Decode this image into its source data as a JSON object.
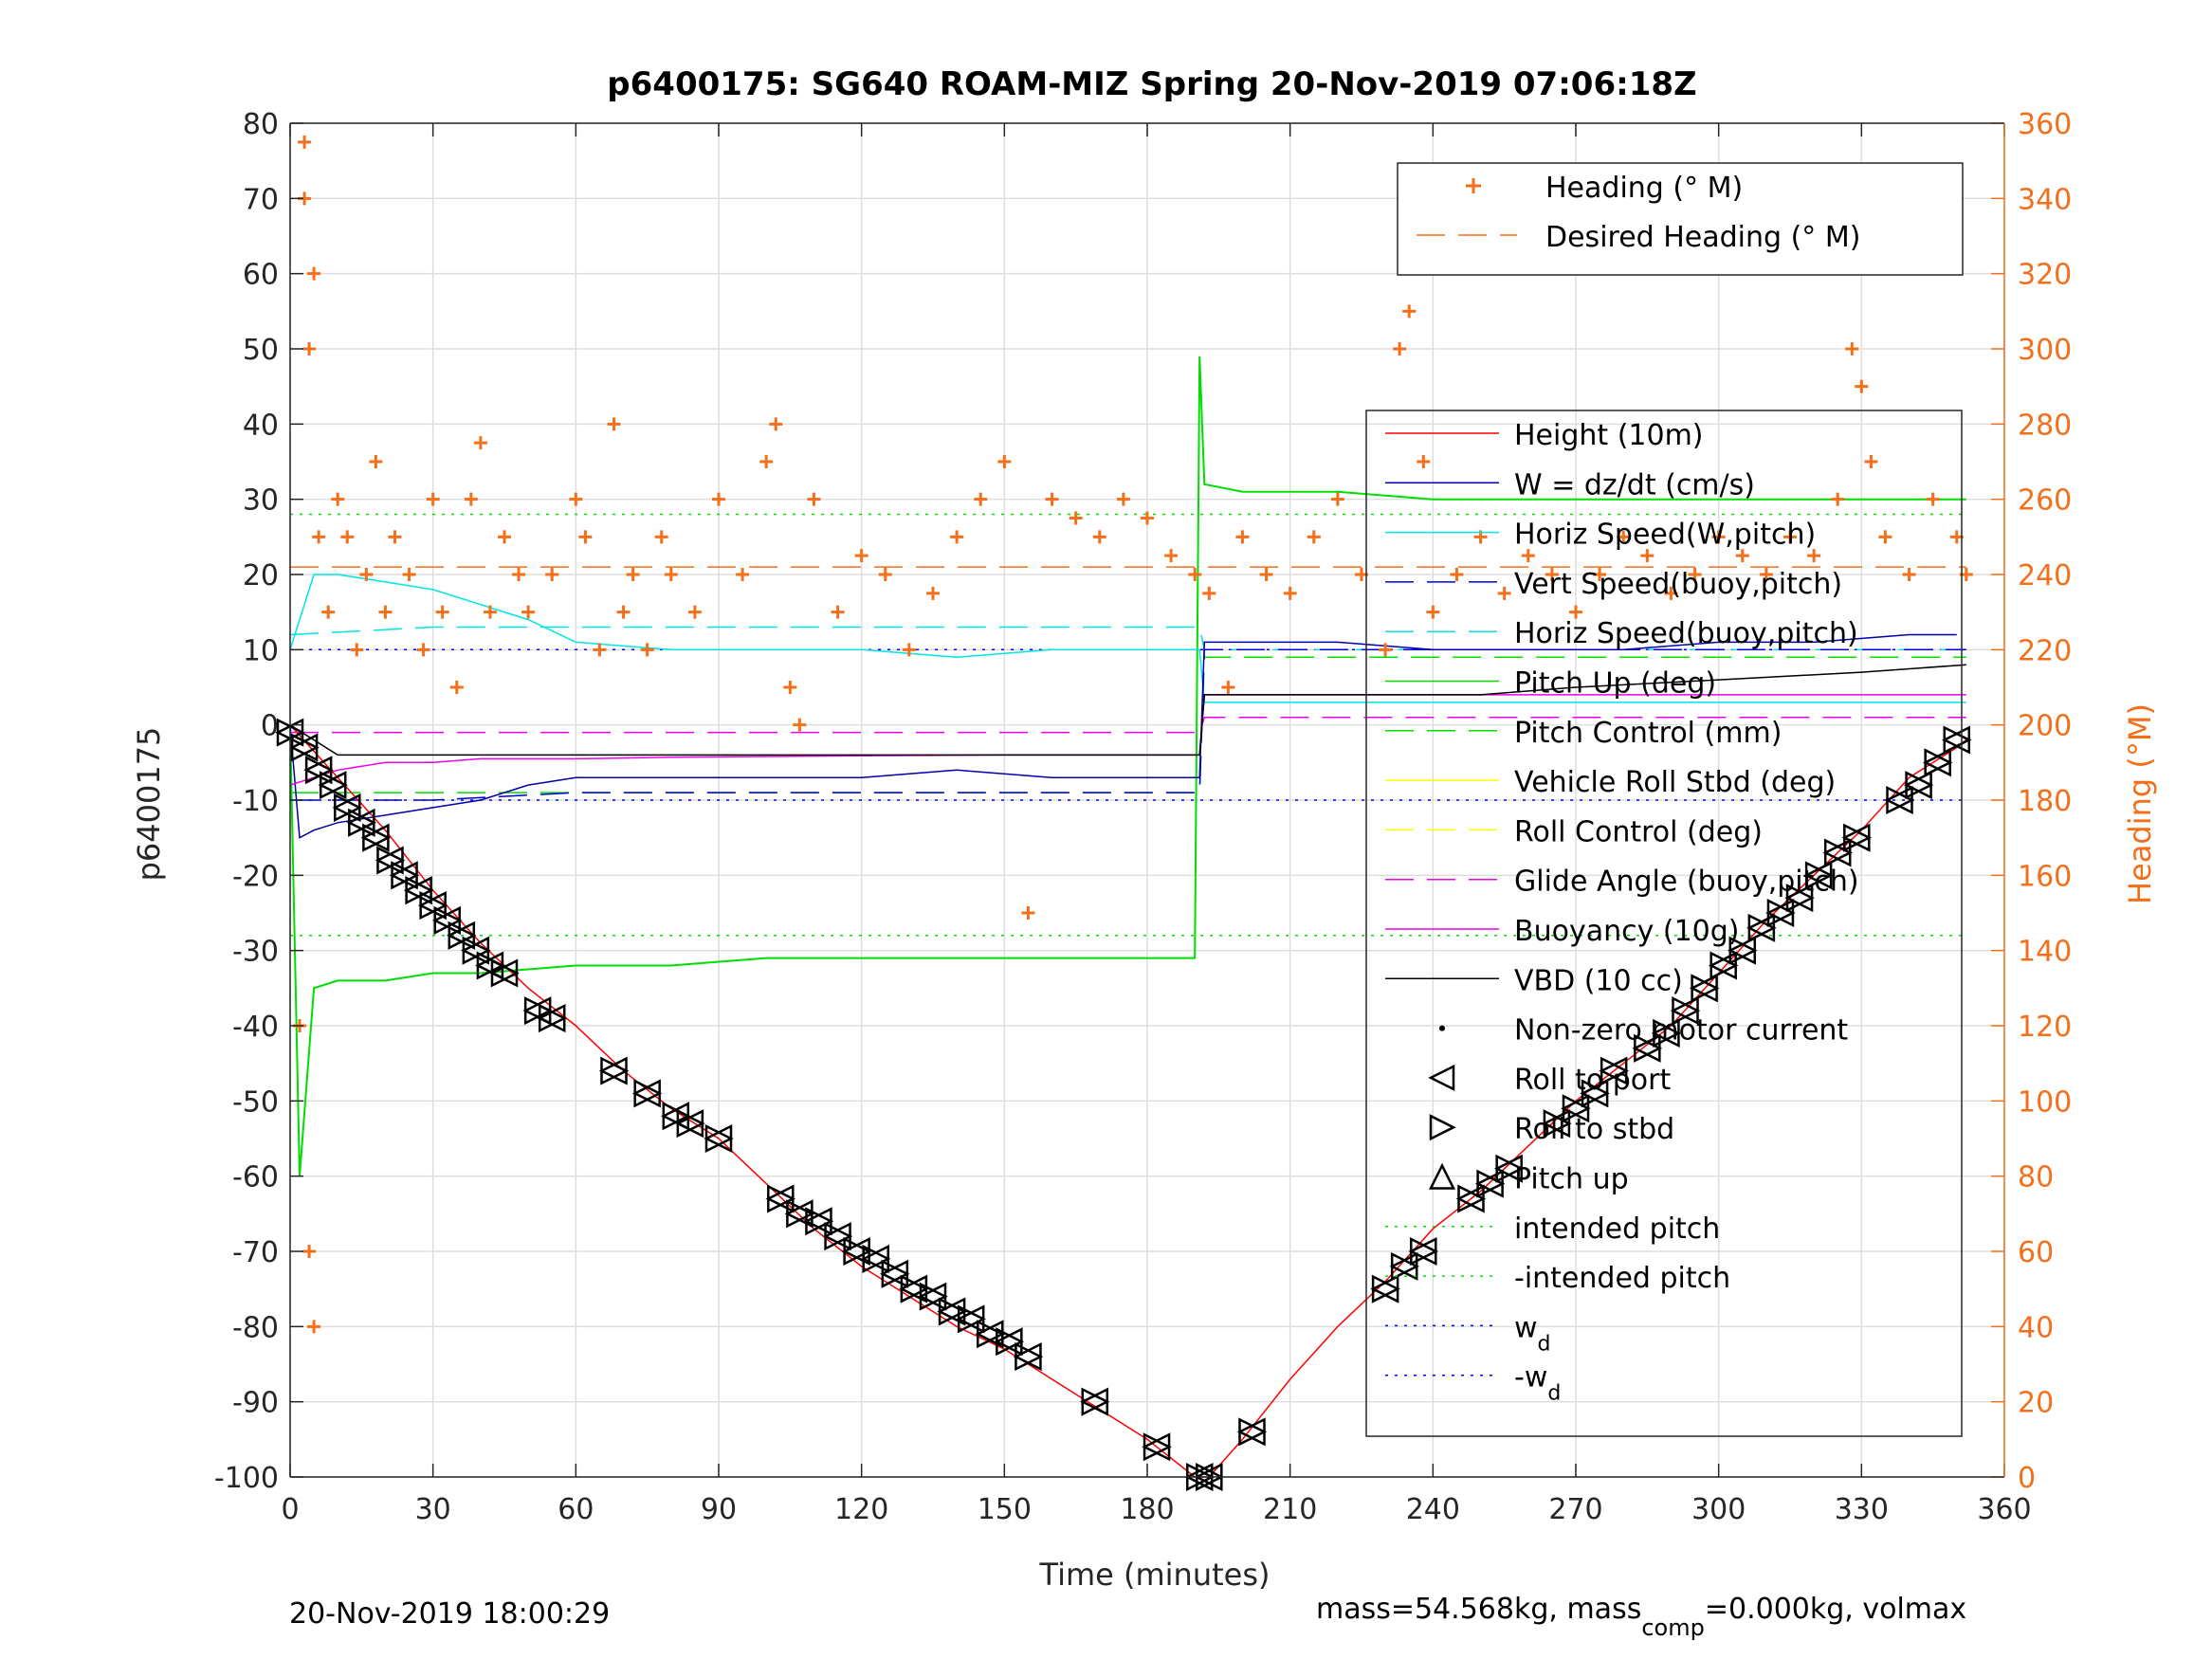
{
  "chart_data": {
    "type": "line",
    "title": "p6400175: SG640 ROAM-MIZ Spring 20-Nov-2019 07:06:18Z",
    "xlabel": "Time (minutes)",
    "ylabel": "p6400175",
    "ylabel_right": "Heading (°M)",
    "xlim": [
      0,
      360
    ],
    "ylim": [
      -100,
      80
    ],
    "ylim_right": [
      0,
      360
    ],
    "xticks": [
      0,
      30,
      60,
      90,
      120,
      150,
      180,
      210,
      240,
      270,
      300,
      330,
      360
    ],
    "xtick_labels": [
      "0",
      "30",
      "60",
      "90",
      "120",
      "150",
      "180",
      "210",
      "240",
      "270",
      "300",
      "330",
      "360"
    ],
    "yticks": [
      80,
      70,
      60,
      50,
      40,
      30,
      20,
      10,
      0,
      -10,
      -20,
      -30,
      -40,
      -50,
      -60,
      -70,
      -80,
      -90,
      -100
    ],
    "ytick_labels": [
      "80",
      "70",
      "60",
      "50",
      "40",
      "30",
      "20",
      "10",
      "0",
      "-10",
      "-20",
      "-30",
      "-40",
      "-50",
      "-60",
      "-70",
      "-80",
      "-90",
      "-100"
    ],
    "yticks_right": [
      360,
      340,
      320,
      300,
      280,
      260,
      240,
      220,
      200,
      180,
      160,
      140,
      120,
      100,
      80,
      60,
      40,
      20,
      0
    ],
    "ytick_labels_right": [
      "360",
      "340",
      "320",
      "300",
      "280",
      "260",
      "240",
      "220",
      "200",
      "180",
      "160",
      "140",
      "120",
      "100",
      "80",
      "60",
      "40",
      "20",
      "0"
    ],
    "grid": true,
    "colors": {
      "heading": "#f46f1a",
      "height": "#ff0000",
      "w": "#0000aa",
      "horiz": "#00e5e5",
      "vert": "#0000dd",
      "pitch": "#00dd00",
      "roll": "#ffff00",
      "glide": "#ee00ee",
      "vbd": "#000000",
      "axis_right": "#f46f1a",
      "wd": "#0000ff"
    },
    "legend_top": {
      "position": "top-right",
      "entries": [
        "Heading (° M)",
        "Desired Heading (° M)"
      ]
    },
    "legend_main": {
      "position": "right",
      "entries": [
        "Height (10m)",
        "W = dz/dt (cm/s)",
        "Horiz Speed(W,pitch)",
        "Vert Speed(buoy,pitch)",
        "Horiz Speed(buoy,pitch)",
        "Pitch Up (deg)",
        "Pitch Control (mm)",
        "Vehicle Roll Stbd (deg)",
        "Roll Control (deg)",
        "Glide Angle (buoy,pitch)",
        "Buoyancy (10g)",
        "VBD (10 cc)",
        "Non-zero motor current",
        "Roll to port",
        "Roll to stbd",
        "Pitch up",
        "intended pitch",
        "-intended pitch",
        "w",
        "-w"
      ],
      "subscripts": {
        "w": "d",
        "-w": "d"
      }
    },
    "series": [
      {
        "name": "Height (10m)",
        "x": [
          0,
          10,
          20,
          30,
          40,
          50,
          60,
          70,
          80,
          90,
          100,
          110,
          120,
          130,
          140,
          150,
          160,
          170,
          180,
          190,
          193,
          200,
          210,
          220,
          230,
          240,
          250,
          260,
          270,
          280,
          290,
          300,
          310,
          320,
          330,
          340,
          350,
          352
        ],
        "y": [
          0,
          -7,
          -14,
          -22,
          -29,
          -35,
          -40,
          -46,
          -51,
          -55,
          -61,
          -67,
          -72,
          -76,
          -80,
          -83,
          -87,
          -91,
          -95,
          -100,
          -100,
          -95,
          -87,
          -80,
          -74,
          -67,
          -62,
          -56,
          -50,
          -45,
          -40,
          -33,
          -26,
          -20,
          -14,
          -7,
          -3,
          -2
        ]
      },
      {
        "name": "W = dz/dt (cm/s)",
        "x": [
          0,
          2,
          5,
          10,
          20,
          30,
          40,
          50,
          60,
          80,
          100,
          120,
          140,
          160,
          180,
          191,
          192,
          200,
          220,
          240,
          260,
          280,
          300,
          320,
          340,
          350
        ],
        "y": [
          0,
          -15,
          -14,
          -13,
          -12,
          -11,
          -10,
          -8,
          -7,
          -7,
          -7,
          -7,
          -6,
          -7,
          -7,
          -7,
          11,
          11,
          11,
          10,
          10,
          10,
          11,
          11,
          12,
          12
        ]
      },
      {
        "name": "Horiz Speed(W,pitch)",
        "x": [
          0,
          5,
          10,
          20,
          30,
          40,
          50,
          60,
          80,
          100,
          120,
          140,
          160,
          180,
          191,
          192,
          210,
          240,
          270,
          300,
          330,
          352
        ],
        "y": [
          10,
          20,
          20,
          19,
          18,
          16,
          14,
          11,
          10,
          10,
          10,
          9,
          10,
          10,
          10,
          3,
          3,
          3,
          3,
          3,
          3,
          3
        ]
      },
      {
        "name": "Vert Speed(buoy,pitch)",
        "x": [
          0,
          30,
          60,
          90,
          120,
          150,
          180,
          191,
          192,
          240,
          300,
          352
        ],
        "y": [
          -10,
          -10,
          -9,
          -9,
          -9,
          -9,
          -9,
          -9,
          10,
          10,
          10,
          10
        ]
      },
      {
        "name": "Horiz Speed(buoy,pitch)",
        "x": [
          0,
          30,
          60,
          90,
          120,
          150,
          180,
          191,
          192,
          240,
          300,
          352
        ],
        "y": [
          12,
          13,
          13,
          13,
          13,
          13,
          13,
          13,
          10,
          10,
          10,
          10
        ]
      },
      {
        "name": "Pitch Up (deg)",
        "x": [
          0,
          2,
          5,
          10,
          20,
          30,
          40,
          60,
          80,
          100,
          120,
          140,
          160,
          180,
          190,
          191,
          192,
          200,
          220,
          240,
          260,
          280,
          300,
          320,
          340,
          352
        ],
        "y": [
          0,
          -60,
          -35,
          -34,
          -34,
          -33,
          -33,
          -32,
          -32,
          -31,
          -31,
          -31,
          -31,
          -31,
          -31,
          49,
          32,
          31,
          31,
          30,
          30,
          30,
          30,
          30,
          30,
          30
        ]
      },
      {
        "name": "Pitch Control (mm)",
        "x": [
          0,
          191,
          192,
          352
        ],
        "y": [
          -9,
          -9,
          9,
          9
        ]
      },
      {
        "name": "Glide Angle (buoy,pitch)",
        "x": [
          0,
          191,
          192,
          352
        ],
        "y": [
          -1,
          -1,
          1,
          1
        ]
      },
      {
        "name": "Buoyancy (10g)",
        "x": [
          0,
          5,
          10,
          20,
          30,
          40,
          60,
          80,
          100,
          120,
          150,
          180,
          191,
          192,
          352
        ],
        "y": [
          -8,
          -7,
          -6,
          -5,
          -5,
          -4.5,
          -4.5,
          -4.3,
          -4.2,
          -4.1,
          -4,
          -4,
          -4,
          4,
          4
        ]
      },
      {
        "name": "VBD (10 cc)",
        "x": [
          0,
          10,
          191,
          192,
          250,
          270,
          300,
          330,
          352
        ],
        "y": [
          0,
          -4,
          -4,
          4,
          4,
          5,
          6,
          7,
          8
        ]
      },
      {
        "name": "intended pitch",
        "x": [
          0,
          352
        ],
        "y": [
          28,
          28
        ]
      },
      {
        "name": "-intended pitch",
        "x": [
          0,
          352
        ],
        "y": [
          -28,
          -28
        ]
      },
      {
        "name": "w",
        "x": [
          0,
          352
        ],
        "y": [
          10,
          10
        ]
      },
      {
        "name": "-w",
        "x": [
          0,
          352
        ],
        "y": [
          -10,
          -10
        ]
      },
      {
        "name": "Desired Heading (° M)",
        "axis": "right",
        "x": [
          0,
          352
        ],
        "y": [
          242,
          242
        ]
      },
      {
        "name": "Heading (° M)",
        "axis": "right",
        "x": [
          2,
          3,
          3,
          4,
          4,
          5,
          5,
          6,
          8,
          10,
          12,
          14,
          16,
          18,
          20,
          22,
          25,
          28,
          30,
          32,
          35,
          38,
          40,
          42,
          45,
          48,
          50,
          55,
          60,
          62,
          65,
          68,
          70,
          72,
          75,
          78,
          80,
          85,
          90,
          95,
          100,
          102,
          105,
          107,
          110,
          115,
          120,
          125,
          130,
          135,
          140,
          145,
          150,
          155,
          160,
          165,
          170,
          175,
          180,
          185,
          190,
          193,
          197,
          200,
          205,
          210,
          215,
          220,
          225,
          230,
          233,
          235,
          238,
          240,
          245,
          250,
          255,
          260,
          265,
          270,
          275,
          280,
          285,
          290,
          295,
          300,
          305,
          310,
          315,
          320,
          325,
          328,
          330,
          332,
          335,
          340,
          345,
          350,
          352
        ],
        "y": [
          120,
          340,
          355,
          300,
          60,
          320,
          40,
          250,
          230,
          260,
          250,
          220,
          240,
          270,
          230,
          250,
          240,
          220,
          260,
          230,
          210,
          260,
          275,
          230,
          250,
          240,
          230,
          240,
          260,
          250,
          220,
          280,
          230,
          240,
          220,
          250,
          240,
          230,
          260,
          240,
          270,
          280,
          210,
          200,
          260,
          230,
          245,
          240,
          220,
          235,
          250,
          260,
          270,
          150,
          260,
          255,
          250,
          260,
          255,
          245,
          240,
          235,
          210,
          250,
          240,
          235,
          250,
          260,
          240,
          220,
          300,
          310,
          270,
          230,
          240,
          250,
          235,
          245,
          240,
          230,
          240,
          250,
          245,
          235,
          240,
          250,
          245,
          240,
          250,
          245,
          260,
          300,
          290,
          270,
          250,
          240,
          260,
          250,
          240
        ]
      }
    ],
    "markers_height": {
      "x": [
        0,
        3,
        6,
        9,
        12,
        15,
        18,
        21,
        24,
        27,
        30,
        33,
        36,
        39,
        42,
        45,
        52,
        55,
        68,
        75,
        81,
        84,
        90,
        103,
        107,
        111,
        115,
        119,
        123,
        127,
        131,
        135,
        139,
        143,
        147,
        151,
        155,
        169,
        182,
        191,
        193,
        202,
        230,
        234,
        238,
        248,
        252,
        256,
        266,
        270,
        274,
        278,
        285,
        289,
        293,
        297,
        301,
        305,
        309,
        313,
        317,
        321,
        325,
        329,
        338,
        342,
        346,
        350
      ],
      "y": [
        -1,
        -3,
        -6,
        -8,
        -11,
        -13,
        -15,
        -18,
        -20,
        -22,
        -24,
        -26,
        -28,
        -30,
        -32,
        -33,
        -38,
        -39,
        -46,
        -49,
        -52,
        -53,
        -55,
        -63,
        -65,
        -66,
        -68,
        -70,
        -71,
        -73,
        -75,
        -76,
        -78,
        -79,
        -81,
        -82,
        -84,
        -90,
        -96,
        -100,
        -100,
        -94,
        -75,
        -72,
        -70,
        -63,
        -61,
        -59,
        -53,
        -51,
        -49,
        -46,
        -43,
        -41,
        -38,
        -35,
        -32,
        -30,
        -27,
        -25,
        -23,
        -20,
        -17,
        -15,
        -10,
        -8,
        -5,
        -2
      ]
    }
  },
  "footer": {
    "timestamp": "20-Nov-2019 18:00:29",
    "mass_prefix": "mass=54.568kg, mass",
    "mass_sub": "comp",
    "mass_suffix": "=0.000kg, volmax"
  }
}
